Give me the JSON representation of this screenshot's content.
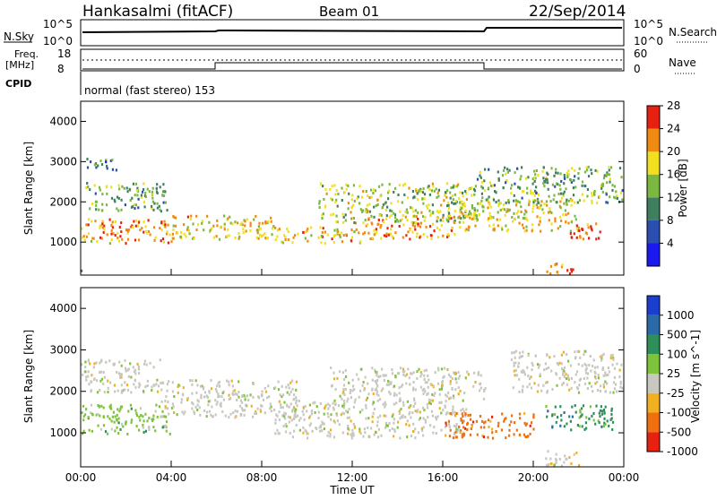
{
  "header": {
    "station": "Hankasalmi (fitACF)",
    "beam": "Beam 01",
    "date": "22/Sep/2014"
  },
  "noise_panel": {
    "left_label": "N.Sky",
    "right_label": "N.Search",
    "left_ticks": [
      "10^5",
      "10^0"
    ],
    "right_ticks": [
      "10^5",
      "10^0"
    ]
  },
  "freq_panel": {
    "left_label_top": "Freq.",
    "left_label_bottom": "[MHz]",
    "right_label": "Nave",
    "left_ticks": [
      "18",
      "8"
    ],
    "right_ticks": [
      "60",
      "0"
    ]
  },
  "cpid_panel": {
    "label": "CPID",
    "text": "normal (fast stereo) 153"
  },
  "chart_data": [
    {
      "type": "heatmap",
      "name": "power",
      "ylabel": "Slant Range [km]",
      "ylim": [
        180,
        4500
      ],
      "yticks": [
        "1000",
        "2000",
        "3000",
        "4000"
      ],
      "colorbar_label": "Power [dB]",
      "colorbar_ticks": [
        "4",
        "8",
        "12",
        "16",
        "20",
        "24",
        "28"
      ],
      "colors": [
        "#1a1af0",
        "#2a4fb0",
        "#3f7f60",
        "#7ab840",
        "#f0e020",
        "#f08a10",
        "#e82010"
      ],
      "bands": [
        {
          "t": [
            0.0,
            1.0
          ],
          "r": [
            300,
            320
          ],
          "level": 0.35
        },
        {
          "t": [
            0.0,
            4.0
          ],
          "r": [
            1000,
            1600
          ],
          "level": 0.8
        },
        {
          "t": [
            0.2,
            3.8
          ],
          "r": [
            1800,
            2500
          ],
          "level": 0.45
        },
        {
          "t": [
            0.2,
            1.6
          ],
          "r": [
            2800,
            3100
          ],
          "level": 0.3
        },
        {
          "t": [
            4.0,
            8.5
          ],
          "r": [
            1100,
            1700
          ],
          "level": 0.7
        },
        {
          "t": [
            8.5,
            12.5
          ],
          "r": [
            1000,
            1400
          ],
          "level": 0.72
        },
        {
          "t": [
            10.5,
            17.5
          ],
          "r": [
            1500,
            2500
          ],
          "level": 0.55
        },
        {
          "t": [
            12.5,
            16.5
          ],
          "r": [
            1100,
            1700
          ],
          "level": 0.8
        },
        {
          "t": [
            16.5,
            22.0
          ],
          "r": [
            1300,
            2100
          ],
          "level": 0.65
        },
        {
          "t": [
            17.5,
            24.0
          ],
          "r": [
            2000,
            2900
          ],
          "level": 0.45
        },
        {
          "t": [
            21.5,
            23.0
          ],
          "r": [
            1100,
            1500
          ],
          "level": 0.95
        },
        {
          "t": [
            20.5,
            21.8
          ],
          "r": [
            180,
            500
          ],
          "level": 0.9
        }
      ]
    },
    {
      "type": "heatmap",
      "name": "velocity",
      "xlabel": "Time UT",
      "ylabel": "Slant Range [km]",
      "xlim": [
        0,
        24
      ],
      "xticks": [
        "00:00",
        "04:00",
        "08:00",
        "12:00",
        "16:00",
        "20:00",
        "00:00"
      ],
      "ylim": [
        180,
        4500
      ],
      "yticks": [
        "1000",
        "2000",
        "3000",
        "4000"
      ],
      "colorbar_label": "Velocity [m s^-1]",
      "colorbar_ticks": [
        "1000",
        "500",
        "100",
        "25",
        "-25",
        "-100",
        "-500",
        "-1000"
      ],
      "colors": [
        "#1a3ecf",
        "#2a6aa8",
        "#2f8f5a",
        "#7ec43a",
        "#c8c8c0",
        "#f0b020",
        "#f07010",
        "#e82010"
      ],
      "bands": [
        {
          "t": [
            0.0,
            4.0
          ],
          "r": [
            1000,
            1700
          ],
          "color": 3
        },
        {
          "t": [
            0.0,
            3.5
          ],
          "r": [
            2000,
            2800
          ],
          "color": 4
        },
        {
          "t": [
            3.5,
            9.5
          ],
          "r": [
            1400,
            2300
          ],
          "color": 4
        },
        {
          "t": [
            8.5,
            17.0
          ],
          "r": [
            900,
            1800
          ],
          "color": 4
        },
        {
          "t": [
            11.0,
            18.0
          ],
          "r": [
            1800,
            2600
          ],
          "color": 4
        },
        {
          "t": [
            16.0,
            20.0
          ],
          "r": [
            900,
            1500
          ],
          "color": 6
        },
        {
          "t": [
            19.0,
            24.0
          ],
          "r": [
            2000,
            3000
          ],
          "color": 4
        },
        {
          "t": [
            20.5,
            23.5
          ],
          "r": [
            1100,
            1700
          ],
          "color": 2
        },
        {
          "t": [
            20.5,
            22.0
          ],
          "r": [
            180,
            600
          ],
          "color": 4
        }
      ]
    }
  ]
}
